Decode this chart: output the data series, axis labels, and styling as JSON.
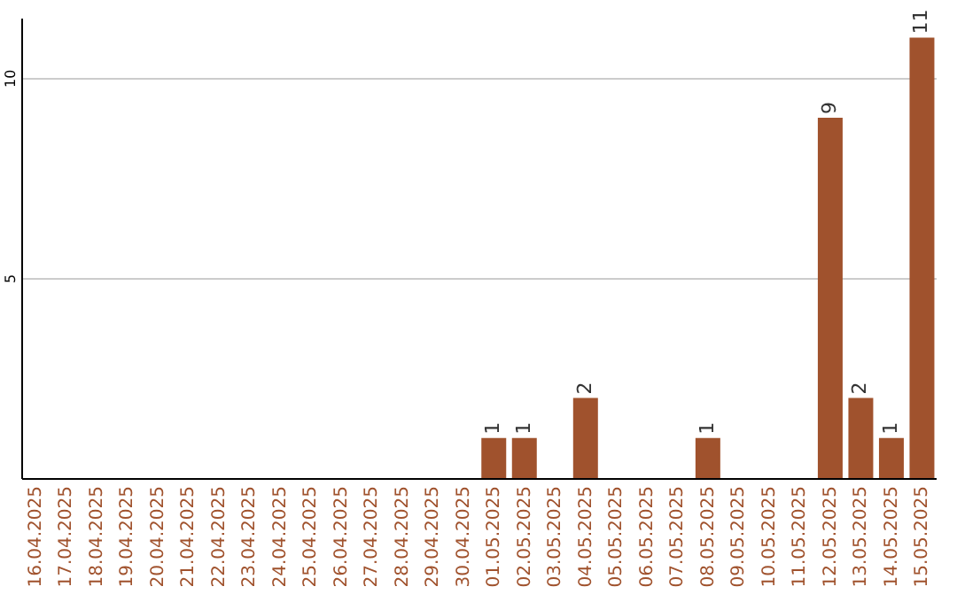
{
  "chart_data": {
    "type": "bar",
    "categories": [
      "16.04.2025",
      "17.04.2025",
      "18.04.2025",
      "19.04.2025",
      "20.04.2025",
      "21.04.2025",
      "22.04.2025",
      "23.04.2025",
      "24.04.2025",
      "25.04.2025",
      "26.04.2025",
      "27.04.2025",
      "28.04.2025",
      "29.04.2025",
      "30.04.2025",
      "01.05.2025",
      "02.05.2025",
      "03.05.2025",
      "04.05.2025",
      "05.05.2025",
      "06.05.2025",
      "07.05.2025",
      "08.05.2025",
      "09.05.2025",
      "10.05.2025",
      "11.05.2025",
      "12.05.2025",
      "13.05.2025",
      "14.05.2025",
      "15.05.2025"
    ],
    "values": [
      0,
      0,
      0,
      0,
      0,
      0,
      0,
      0,
      0,
      0,
      0,
      0,
      0,
      0,
      0,
      1,
      1,
      0,
      2,
      0,
      0,
      0,
      1,
      0,
      0,
      0,
      9,
      2,
      1,
      11
    ],
    "value_labels": [
      null,
      null,
      null,
      null,
      null,
      null,
      null,
      null,
      null,
      null,
      null,
      null,
      null,
      null,
      null,
      "1",
      "1",
      null,
      "2",
      null,
      null,
      null,
      "1",
      null,
      null,
      null,
      "9",
      "2",
      "1",
      "11"
    ],
    "color": "#a0522d",
    "ylim": [
      0,
      11.5
    ],
    "yticks": [
      5,
      10
    ],
    "grid": "y"
  }
}
